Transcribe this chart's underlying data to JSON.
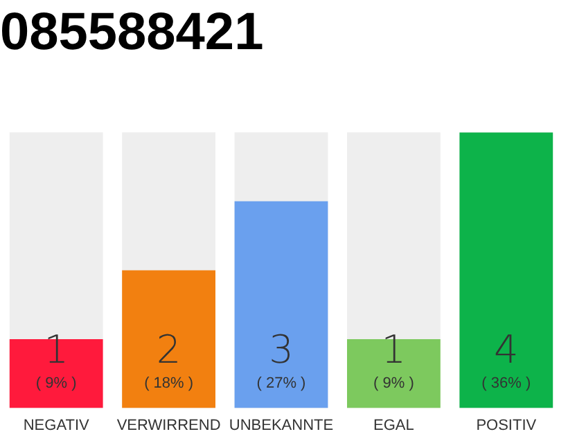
{
  "chart_data": {
    "type": "bar",
    "title": "085588421",
    "categories": [
      "NEGATIV",
      "VERWIRREND",
      "UNBEKANNTE",
      "EGAL",
      "POSITIV"
    ],
    "values": [
      1,
      2,
      3,
      1,
      4
    ],
    "colors": [
      "#ff1a3c",
      "#f28010",
      "#6aa0ee",
      "#7dc95e",
      "#0db34a"
    ],
    "ylim": [
      0,
      4
    ],
    "data_labels": true,
    "grid": false,
    "legend": false,
    "tick_labels": "x",
    "annotations": [
      "( 9% )",
      "( 18% )",
      "( 27% )",
      "( 9% )",
      "( 36% )"
    ]
  }
}
